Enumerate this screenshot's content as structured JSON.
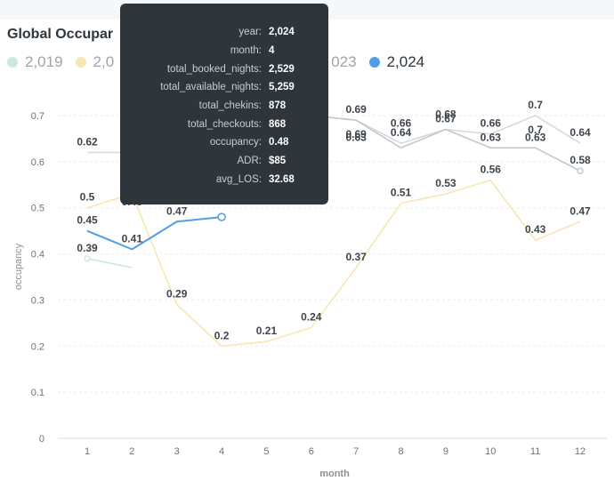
{
  "title": "Global Occupar",
  "legend": [
    {
      "label": "2,019",
      "color": "#cfe8df"
    },
    {
      "label": "2,0",
      "color": "#f7e7b0"
    },
    {
      "label": "023",
      "color": "#cfd3d8"
    },
    {
      "label": "2,024",
      "color": "#509ee3"
    }
  ],
  "tooltip": [
    {
      "key": "year:",
      "value": "2,024"
    },
    {
      "key": "month:",
      "value": "4"
    },
    {
      "key": "total_booked_nights:",
      "value": "2,529"
    },
    {
      "key": "total_available_nights:",
      "value": "5,259"
    },
    {
      "key": "total_chekins:",
      "value": "878"
    },
    {
      "key": "total_checkouts:",
      "value": "868"
    },
    {
      "key": "occupancy:",
      "value": "0.48"
    },
    {
      "key": "ADR:",
      "value": "$85"
    },
    {
      "key": "avg_LOS:",
      "value": "32.68"
    }
  ],
  "chart_data": {
    "type": "line",
    "xlabel": "month",
    "ylabel": "occupancy",
    "ylim": [
      0,
      0.7
    ],
    "y_ticks": [
      "0",
      "0.1",
      "0.2",
      "0.3",
      "0.4",
      "0.5",
      "0.6",
      "0.7"
    ],
    "categories": [
      "1",
      "2",
      "3",
      "4",
      "5",
      "6",
      "7",
      "8",
      "9",
      "10",
      "11",
      "12"
    ],
    "series": [
      {
        "name": "2,019",
        "color": "#cfe8df",
        "values": [
          0.39,
          0.37,
          null,
          null,
          null,
          null,
          null,
          null,
          null,
          null,
          null,
          null
        ]
      },
      {
        "name": "2,0",
        "color": "#f7e7b0",
        "values": [
          0.5,
          0.53,
          0.29,
          0.2,
          0.21,
          0.24,
          0.37,
          0.51,
          0.53,
          0.56,
          0.43,
          0.47
        ]
      },
      {
        "name": "",
        "color": "#d6d9dd",
        "values": [
          0.62,
          0.62,
          0.6,
          0.62,
          0.66,
          0.7,
          0.69,
          0.64,
          0.67,
          0.66,
          0.7,
          0.64
        ]
      },
      {
        "name": "023",
        "color": "#c3c8ce",
        "values": [
          null,
          null,
          null,
          null,
          null,
          0.7,
          0.69,
          0.63,
          0.67,
          0.63,
          0.63,
          0.58
        ]
      },
      {
        "name": "2,024",
        "color": "#509ee3",
        "values": [
          0.45,
          0.41,
          0.47,
          0.48,
          null,
          null,
          null,
          null,
          null,
          null,
          null,
          null
        ]
      }
    ],
    "data_labels": [
      {
        "x": 1,
        "y": 0.62,
        "text": "0.62"
      },
      {
        "x": 1,
        "y": 0.5,
        "text": "0.5"
      },
      {
        "x": 1,
        "y": 0.45,
        "text": "0.45"
      },
      {
        "x": 1,
        "y": 0.39,
        "text": "0.39"
      },
      {
        "x": 2,
        "y": 0.49,
        "text": "0.49"
      },
      {
        "x": 2,
        "y": 0.41,
        "text": "0.41"
      },
      {
        "x": 3,
        "y": 0.52,
        "text": "0.52"
      },
      {
        "x": 3,
        "y": 0.47,
        "text": "0.47"
      },
      {
        "x": 3,
        "y": 0.29,
        "text": "0.29"
      },
      {
        "x": 4,
        "y": 0.2,
        "text": "0.2"
      },
      {
        "x": 5,
        "y": 0.21,
        "text": "0.21"
      },
      {
        "x": 6,
        "y": 0.24,
        "text": "0.24"
      },
      {
        "x": 7,
        "y": 0.69,
        "text": "0.69"
      },
      {
        "x": 7,
        "y": 0.69,
        "text": "0.69"
      },
      {
        "x": 7,
        "y": 0.63,
        "text": "0.63"
      },
      {
        "x": 7,
        "y": 0.37,
        "text": "0.37"
      },
      {
        "x": 8,
        "y": 0.66,
        "text": "0.66"
      },
      {
        "x": 8,
        "y": 0.64,
        "text": "0.64"
      },
      {
        "x": 8,
        "y": 0.51,
        "text": "0.51"
      },
      {
        "x": 9,
        "y": 0.68,
        "text": "0.68"
      },
      {
        "x": 9,
        "y": 0.67,
        "text": "0.67"
      },
      {
        "x": 9,
        "y": 0.53,
        "text": "0.53"
      },
      {
        "x": 10,
        "y": 0.66,
        "text": "0.66"
      },
      {
        "x": 10,
        "y": 0.63,
        "text": "0.63"
      },
      {
        "x": 10,
        "y": 0.56,
        "text": "0.56"
      },
      {
        "x": 11,
        "y": 0.7,
        "text": "0.7"
      },
      {
        "x": 11,
        "y": 0.7,
        "text": "0.7"
      },
      {
        "x": 11,
        "y": 0.63,
        "text": "0.63"
      },
      {
        "x": 11,
        "y": 0.43,
        "text": "0.43"
      },
      {
        "x": 12,
        "y": 0.64,
        "text": "0.64"
      },
      {
        "x": 12,
        "y": 0.58,
        "text": "0.58"
      },
      {
        "x": 12,
        "y": 0.47,
        "text": "0.47"
      }
    ],
    "grid": true,
    "legend_position": "top-left",
    "highlight": {
      "series": "2,024",
      "x": 4
    }
  }
}
